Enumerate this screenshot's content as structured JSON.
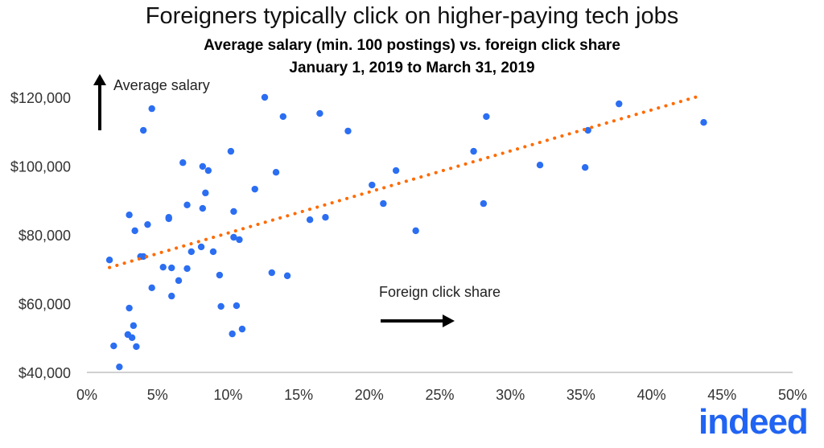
{
  "chart_data": {
    "type": "scatter",
    "title": "Foreigners typically click on higher-paying tech jobs",
    "subtitle_lines": [
      "Average salary (min. 100 postings) vs. foreign click share",
      "January 1, 2019 to March 31, 2019"
    ],
    "ylabel": "Average salary",
    "xlabel": "Foreign click share",
    "xlim": [
      0,
      50
    ],
    "ylim": [
      40000,
      120000
    ],
    "x_ticks": [
      "0%",
      "5%",
      "10%",
      "15%",
      "20%",
      "25%",
      "30%",
      "35%",
      "40%",
      "45%",
      "50%"
    ],
    "y_ticks": [
      "$40,000",
      "$60,000",
      "$80,000",
      "$100,000",
      "$120,000"
    ],
    "grid": false,
    "colors": {
      "points": "#2b6ef2",
      "trend": "#ff6a00"
    },
    "points": [
      [
        1.6,
        72700
      ],
      [
        1.9,
        47700
      ],
      [
        2.3,
        41600
      ],
      [
        3.0,
        85800
      ],
      [
        3.0,
        58700
      ],
      [
        2.9,
        51000
      ],
      [
        3.2,
        50100
      ],
      [
        3.3,
        53600
      ],
      [
        3.4,
        81200
      ],
      [
        3.5,
        47500
      ],
      [
        3.8,
        73700
      ],
      [
        4.0,
        73700
      ],
      [
        4.0,
        110400
      ],
      [
        4.3,
        83000
      ],
      [
        4.6,
        116700
      ],
      [
        4.6,
        64600
      ],
      [
        5.4,
        70600
      ],
      [
        5.8,
        85100
      ],
      [
        5.8,
        84700
      ],
      [
        6.0,
        70400
      ],
      [
        6.0,
        62200
      ],
      [
        6.5,
        66700
      ],
      [
        6.8,
        101000
      ],
      [
        7.1,
        88700
      ],
      [
        7.1,
        70200
      ],
      [
        7.4,
        75100
      ],
      [
        8.1,
        76500
      ],
      [
        8.2,
        99900
      ],
      [
        8.2,
        87700
      ],
      [
        8.4,
        92200
      ],
      [
        8.6,
        98700
      ],
      [
        8.95,
        75100
      ],
      [
        9.4,
        68300
      ],
      [
        9.5,
        59200
      ],
      [
        10.2,
        104300
      ],
      [
        10.3,
        51200
      ],
      [
        10.4,
        86800
      ],
      [
        10.4,
        79300
      ],
      [
        10.6,
        59400
      ],
      [
        10.8,
        78600
      ],
      [
        11.0,
        52600
      ],
      [
        11.9,
        93300
      ],
      [
        12.6,
        120000
      ],
      [
        13.1,
        69000
      ],
      [
        13.4,
        98200
      ],
      [
        13.9,
        114400
      ],
      [
        14.2,
        68100
      ],
      [
        15.8,
        84400
      ],
      [
        16.5,
        115300
      ],
      [
        16.9,
        85100
      ],
      [
        18.5,
        110200
      ],
      [
        20.2,
        94500
      ],
      [
        21.0,
        89100
      ],
      [
        21.9,
        98700
      ],
      [
        23.3,
        81200
      ],
      [
        27.4,
        104300
      ],
      [
        28.1,
        89100
      ],
      [
        28.3,
        114400
      ],
      [
        32.1,
        100300
      ],
      [
        35.3,
        99600
      ],
      [
        35.5,
        110400
      ],
      [
        37.7,
        118100
      ],
      [
        43.7,
        112700
      ]
    ],
    "trendline": {
      "x": [
        1.6,
        43.5
      ],
      "y": [
        70500,
        120500
      ],
      "style": "dotted"
    }
  },
  "logo": "indeed"
}
